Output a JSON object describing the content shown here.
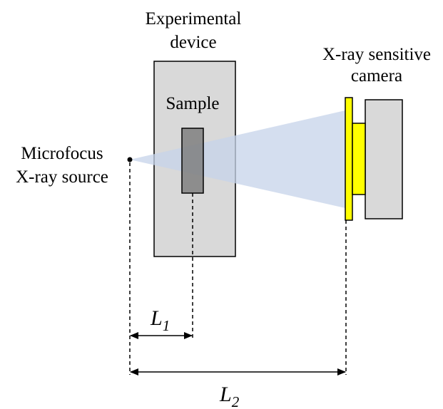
{
  "labels": {
    "experimental_device_line1": "Experimental",
    "experimental_device_line2": "device",
    "sample": "Sample",
    "source_line1": "Microfocus",
    "source_line2": "X-ray source",
    "camera_line1": "X-ray sensitive",
    "camera_line2": "camera"
  },
  "dimensions": {
    "l1_symbol": "L",
    "l1_subscript": "1",
    "l2_symbol": "L",
    "l2_subscript": "2"
  },
  "colors": {
    "device_fill": "#d9d9d9",
    "sample_fill": "#7f7f7f",
    "beam_fill": "#c6d3ea",
    "detector_fill": "#ffff00",
    "camera_body_fill": "#d9d9d9",
    "outline": "#000000"
  }
}
